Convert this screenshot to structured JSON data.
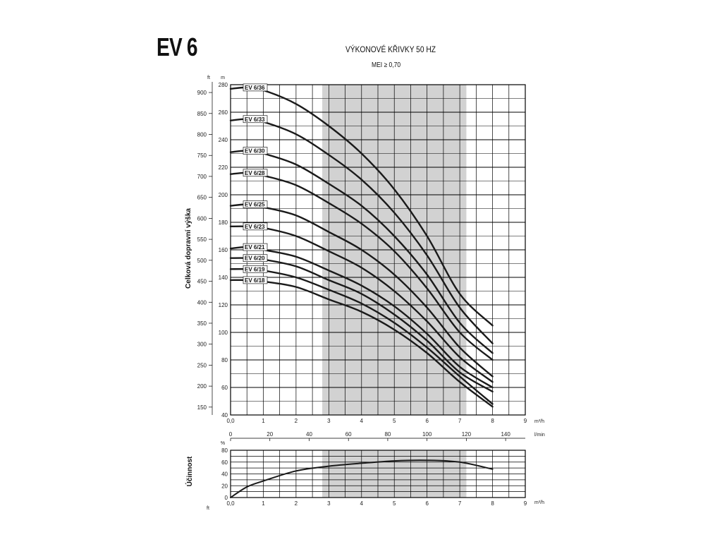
{
  "header": {
    "model": "EV 6",
    "title": "VÝKONOVÉ KŘIVKY 50 HZ",
    "subtitle": "MEI ≥ 0,70"
  },
  "colors": {
    "curve": "#1a1a1a",
    "shaded": "#d2d2d2",
    "grid": "#000000"
  },
  "chart_data": [
    {
      "type": "line",
      "ylabel": "Celková dopravní výška",
      "y_unit_left": "ft",
      "y_unit_right": "m",
      "x_unit_m3h": "m³/h",
      "x_unit_lmin": "l/min",
      "xlim": [
        0,
        9
      ],
      "ylim": [
        40,
        280
      ],
      "y_ticks_m": [
        40,
        60,
        80,
        100,
        120,
        140,
        160,
        180,
        200,
        220,
        240,
        260,
        280
      ],
      "y_ticks_ft": [
        150,
        200,
        250,
        300,
        350,
        400,
        450,
        500,
        550,
        600,
        650,
        700,
        750,
        800,
        850,
        900
      ],
      "x_ticks_m3h": [
        "0,0",
        "1",
        "2",
        "3",
        "4",
        "5",
        "6",
        "7",
        "8",
        "9"
      ],
      "x_ticks_lmin": [
        "0",
        "20",
        "40",
        "60",
        "80",
        "100",
        "120",
        "140"
      ],
      "shaded_range_m3h": [
        2.8,
        7.2
      ],
      "series": [
        {
          "name": "EV 6/36",
          "x": [
            0,
            0.5,
            1,
            2,
            3,
            4,
            5,
            6,
            7,
            8
          ],
          "y": [
            277,
            278,
            276,
            266,
            250,
            230,
            204,
            170,
            128,
            105
          ]
        },
        {
          "name": "EV 6/33",
          "x": [
            0,
            0.5,
            1,
            2,
            3,
            4,
            5,
            6,
            7,
            8
          ],
          "y": [
            254,
            255,
            253,
            244,
            229,
            211,
            187,
            156,
            118,
            92
          ]
        },
        {
          "name": "EV 6/30",
          "x": [
            0,
            0.5,
            1,
            2,
            3,
            4,
            5,
            6,
            7,
            8
          ],
          "y": [
            231,
            232,
            230,
            222,
            208,
            192,
            170,
            142,
            107,
            85
          ]
        },
        {
          "name": "EV 6/28",
          "x": [
            0,
            0.5,
            1,
            2,
            3,
            4,
            5,
            6,
            7,
            8
          ],
          "y": [
            215,
            216,
            214,
            207,
            194,
            179,
            159,
            132,
            100,
            80
          ]
        },
        {
          "name": "EV 6/25",
          "x": [
            0,
            0.5,
            1,
            2,
            3,
            4,
            5,
            6,
            7,
            8
          ],
          "y": [
            192,
            193,
            191,
            185,
            173,
            160,
            142,
            118,
            89,
            68
          ]
        },
        {
          "name": "EV 6/23",
          "x": [
            0,
            0.5,
            1,
            2,
            3,
            4,
            5,
            6,
            7,
            8
          ],
          "y": [
            177,
            177,
            176,
            170,
            159,
            147,
            130,
            108,
            82,
            64
          ]
        },
        {
          "name": "EV 6/21",
          "x": [
            0,
            0.5,
            1,
            2,
            3,
            4,
            5,
            6,
            7,
            8
          ],
          "y": [
            161,
            162,
            160,
            155,
            145,
            134,
            119,
            99,
            75,
            60
          ]
        },
        {
          "name": "EV 6/20",
          "x": [
            0,
            0.5,
            1,
            2,
            3,
            4,
            5,
            6,
            7,
            8
          ],
          "y": [
            154,
            154,
            153,
            148,
            138,
            128,
            113,
            94,
            71,
            57
          ]
        },
        {
          "name": "EV 6/19",
          "x": [
            0,
            0.5,
            1,
            2,
            3,
            4,
            5,
            6,
            7,
            8
          ],
          "y": [
            146,
            146,
            145,
            140,
            131,
            121,
            107,
            89,
            68,
            48
          ]
        },
        {
          "name": "EV 6/18",
          "x": [
            0,
            0.5,
            1,
            2,
            3,
            4,
            5,
            6,
            7,
            8
          ],
          "y": [
            138,
            138,
            137,
            133,
            124,
            115,
            102,
            85,
            64,
            46
          ]
        }
      ]
    },
    {
      "type": "line",
      "ylabel": "Účinnost",
      "y_unit": "%",
      "left_unit_bottom": "ft",
      "x_unit_m3h": "m³/h",
      "xlim": [
        0,
        9
      ],
      "ylim": [
        0,
        80
      ],
      "y_ticks": [
        0,
        20,
        40,
        60,
        80
      ],
      "x_ticks_m3h": [
        "0,0",
        "1",
        "2",
        "3",
        "4",
        "5",
        "6",
        "7",
        "8",
        "9"
      ],
      "shaded_range_m3h": [
        2.8,
        7.2
      ],
      "series": [
        {
          "x": [
            0,
            0.5,
            1,
            2,
            3,
            4,
            5,
            6,
            7,
            8
          ],
          "y": [
            0,
            18,
            28,
            45,
            53,
            58,
            62,
            63,
            60,
            48
          ]
        }
      ]
    }
  ]
}
